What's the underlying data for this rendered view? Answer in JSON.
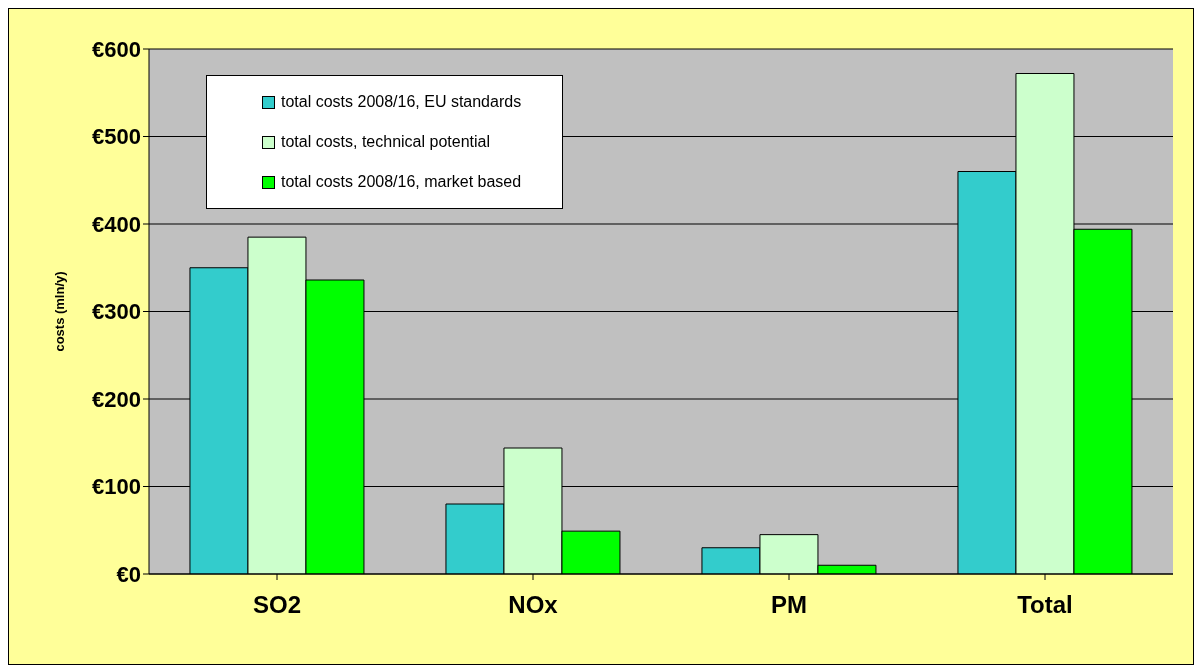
{
  "chart_data": {
    "type": "bar",
    "ylabel": "costs (mln/y)",
    "categories": [
      "SO2",
      "NOx",
      "PM",
      "Total"
    ],
    "series": [
      {
        "name": "total costs 2008/16, EU standards",
        "color": "#33cccc",
        "values": [
          350,
          80,
          30,
          460
        ]
      },
      {
        "name": "total costs, technical potential",
        "color": "#ccffcc",
        "values": [
          385,
          144,
          45,
          572
        ]
      },
      {
        "name": "total costs 2008/16, market based",
        "color": "#00ff00",
        "values": [
          336,
          49,
          10,
          394
        ]
      }
    ],
    "ylim": [
      0,
      600
    ],
    "yticks": [
      {
        "value": 0,
        "label": "€0"
      },
      {
        "value": 100,
        "label": "€100"
      },
      {
        "value": 200,
        "label": "€200"
      },
      {
        "value": 300,
        "label": "€300"
      },
      {
        "value": 400,
        "label": "€400"
      },
      {
        "value": 500,
        "label": "€500"
      },
      {
        "value": 600,
        "label": "€600"
      }
    ],
    "grid": "y",
    "legend": "top left"
  }
}
